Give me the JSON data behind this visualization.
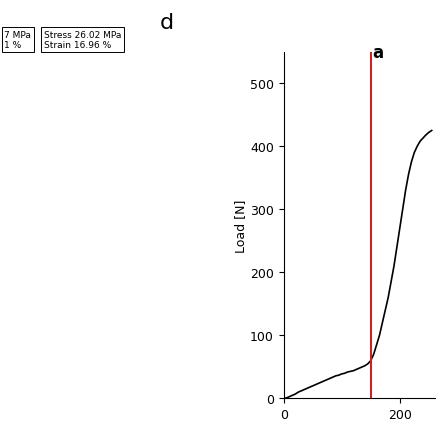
{
  "title": "d",
  "ylabel": "Load [N]",
  "xlabel": "",
  "xlim": [
    0,
    260
  ],
  "ylim": [
    0,
    550
  ],
  "yticks": [
    0,
    100,
    200,
    300,
    400,
    500
  ],
  "xticks": [
    0,
    200
  ],
  "red_line_x": 150,
  "red_line_label": "a",
  "curve_color": "#000000",
  "red_line_color": "#cc2222",
  "subtitle_left": "7 MPa\n1 %",
  "subtitle_right": "Stress 26.02 MPa\nStrain 16.96 %",
  "figsize": [
    4.39,
    4.39
  ],
  "dpi": 100,
  "curve_x": [
    0,
    5,
    10,
    15,
    20,
    25,
    30,
    35,
    40,
    45,
    50,
    55,
    60,
    65,
    70,
    75,
    80,
    85,
    90,
    95,
    100,
    105,
    110,
    115,
    120,
    125,
    130,
    135,
    140,
    145,
    150,
    155,
    160,
    165,
    170,
    175,
    180,
    185,
    190,
    195,
    200,
    205,
    210,
    215,
    220,
    225,
    230,
    235,
    240,
    245,
    250,
    255
  ],
  "curve_y": [
    0,
    1,
    3,
    5,
    7,
    10,
    12,
    14,
    16,
    18,
    20,
    22,
    24,
    26,
    28,
    30,
    32,
    34,
    36,
    37,
    39,
    40,
    42,
    43,
    44,
    46,
    48,
    50,
    52,
    55,
    60,
    70,
    85,
    100,
    120,
    140,
    160,
    185,
    210,
    240,
    270,
    300,
    330,
    355,
    375,
    390,
    400,
    408,
    413,
    418,
    422,
    425
  ]
}
